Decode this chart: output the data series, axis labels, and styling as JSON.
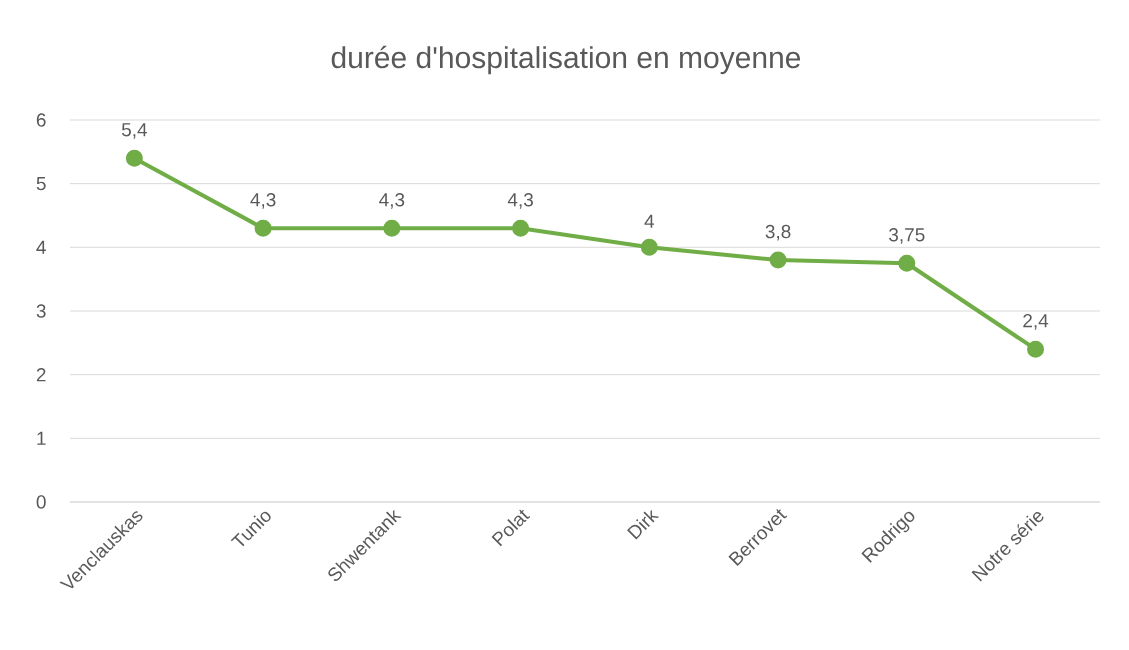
{
  "chart_data": {
    "type": "line",
    "title": "durée d'hospitalisation en moyenne",
    "categories": [
      "Venclauskas",
      "Tunio",
      "Shwentank",
      "Polat",
      "Dirk",
      "Berrovet",
      "Rodrigo",
      "Notre série"
    ],
    "values": [
      5.4,
      4.3,
      4.3,
      4.3,
      4,
      3.8,
      3.75,
      2.4
    ],
    "value_labels": [
      "5,4",
      "4,3",
      "4,3",
      "4,3",
      "4",
      "3,8",
      "3,75",
      "2,4"
    ],
    "color": "#70ad47",
    "marker": "circle",
    "line_style": "solid",
    "ylim": [
      0,
      6
    ],
    "yticks": [
      0,
      1,
      2,
      3,
      4,
      5,
      6
    ],
    "grid": "y"
  }
}
